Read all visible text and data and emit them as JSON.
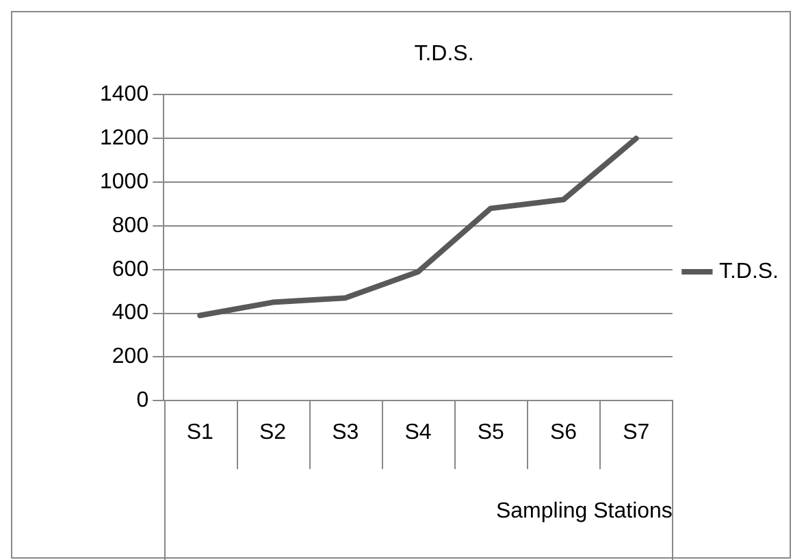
{
  "chart_data": {
    "type": "line",
    "title": "T.D.S.",
    "xlabel": "Sampling Stations",
    "categories": [
      "S1",
      "S2",
      "S3",
      "S4",
      "S5",
      "S6",
      "S7"
    ],
    "series": [
      {
        "name": "T.D.S.",
        "color": "#595959",
        "values": [
          390,
          450,
          470,
          590,
          880,
          920,
          1200
        ]
      }
    ],
    "ylim": [
      0,
      1400
    ],
    "yticks": [
      0,
      200,
      400,
      600,
      800,
      1000,
      1200,
      1400
    ],
    "grid": "y",
    "legend": "right",
    "marker": "none"
  }
}
